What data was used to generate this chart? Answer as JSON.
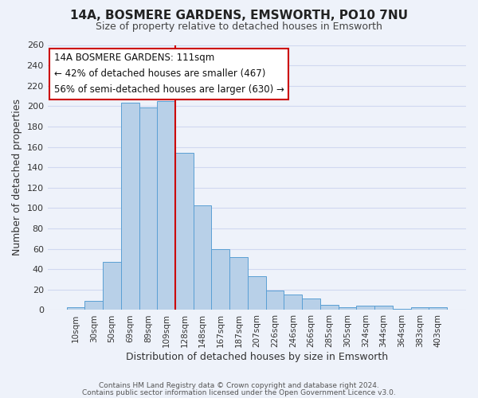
{
  "title": "14A, BOSMERE GARDENS, EMSWORTH, PO10 7NU",
  "subtitle": "Size of property relative to detached houses in Emsworth",
  "xlabel": "Distribution of detached houses by size in Emsworth",
  "ylabel": "Number of detached properties",
  "categories": [
    "10sqm",
    "30sqm",
    "50sqm",
    "69sqm",
    "89sqm",
    "109sqm",
    "128sqm",
    "148sqm",
    "167sqm",
    "187sqm",
    "207sqm",
    "226sqm",
    "246sqm",
    "266sqm",
    "285sqm",
    "305sqm",
    "324sqm",
    "344sqm",
    "364sqm",
    "383sqm",
    "403sqm"
  ],
  "values": [
    3,
    9,
    47,
    203,
    199,
    205,
    154,
    103,
    60,
    52,
    33,
    19,
    15,
    11,
    5,
    3,
    4,
    4,
    1,
    3,
    3
  ],
  "bar_color": "#b8d0e8",
  "bar_edge_color": "#5a9fd4",
  "background_color": "#eef2fa",
  "grid_color": "#d0d8f0",
  "vline_x": 5.5,
  "vline_color": "#cc0000",
  "annotation_title": "14A BOSMERE GARDENS: 111sqm",
  "annotation_line1": "← 42% of detached houses are smaller (467)",
  "annotation_line2": "56% of semi-detached houses are larger (630) →",
  "annotation_box_color": "#ffffff",
  "annotation_box_edge": "#cc0000",
  "ylim": [
    0,
    260
  ],
  "yticks": [
    0,
    20,
    40,
    60,
    80,
    100,
    120,
    140,
    160,
    180,
    200,
    220,
    240,
    260
  ],
  "footer1": "Contains HM Land Registry data © Crown copyright and database right 2024.",
  "footer2": "Contains public sector information licensed under the Open Government Licence v3.0."
}
